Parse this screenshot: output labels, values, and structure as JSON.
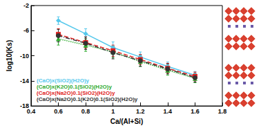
{
  "chart_data": {
    "type": "line",
    "x_label": "Ca/(Al+Si)",
    "y_label": "log10(Ks)",
    "xlim": [
      0.4,
      1.8
    ],
    "xticks": [
      0.4,
      0.6,
      0.8,
      1,
      1.2,
      1.4,
      1.6,
      1.8
    ],
    "ylim": [
      -18,
      -2
    ],
    "yticks": [
      -18,
      -14,
      -10,
      -6,
      -2
    ],
    "grid": false,
    "legend": "lower left",
    "x": [
      0.6,
      0.8,
      1.0,
      1.2,
      1.4,
      1.6
    ],
    "series": [
      {
        "name": "(CaO)x(SiO2)(H2O)y",
        "color": "#55c8ec",
        "marker": "diamond",
        "line_style": "solid",
        "values": [
          -4.4,
          -6.5,
          -8.7,
          -10.2,
          -11.7,
          -13.1
        ],
        "errors": [
          0.6,
          0.8,
          0.9,
          0.8,
          0.7,
          0.6
        ]
      },
      {
        "name": "(CaO)x(K2O)0.1(SiO2)(H2O)y",
        "color": "#2eaa2e",
        "marker": "triangle",
        "line_style": "dotted",
        "values": [
          -7.3,
          -8.3,
          -9.4,
          -10.9,
          -12.3,
          -13.6
        ],
        "errors": [
          1.0,
          1.0,
          0.9,
          0.8,
          0.8,
          0.7
        ]
      },
      {
        "name": "(CaO)x(Na2O)0.1(SiO2)(H2O)y",
        "color": "#e02020",
        "marker": "square",
        "line_style": "dashed",
        "values": [
          -6.6,
          -7.9,
          -9.2,
          -10.6,
          -12.0,
          -13.3
        ],
        "errors": [
          0.9,
          0.9,
          0.9,
          0.8,
          0.8,
          0.7
        ]
      },
      {
        "name": "(CaO)x(Na2O)0.1(K2O)0.1(SiO2)(H2O)y",
        "color": "#333333",
        "marker": "circle",
        "line_style": "dashdot",
        "values": [
          -6.8,
          -8.0,
          -9.5,
          -10.8,
          -12.1,
          -13.5
        ],
        "errors": [
          1.0,
          1.0,
          1.0,
          0.9,
          0.8,
          0.7
        ]
      }
    ]
  }
}
